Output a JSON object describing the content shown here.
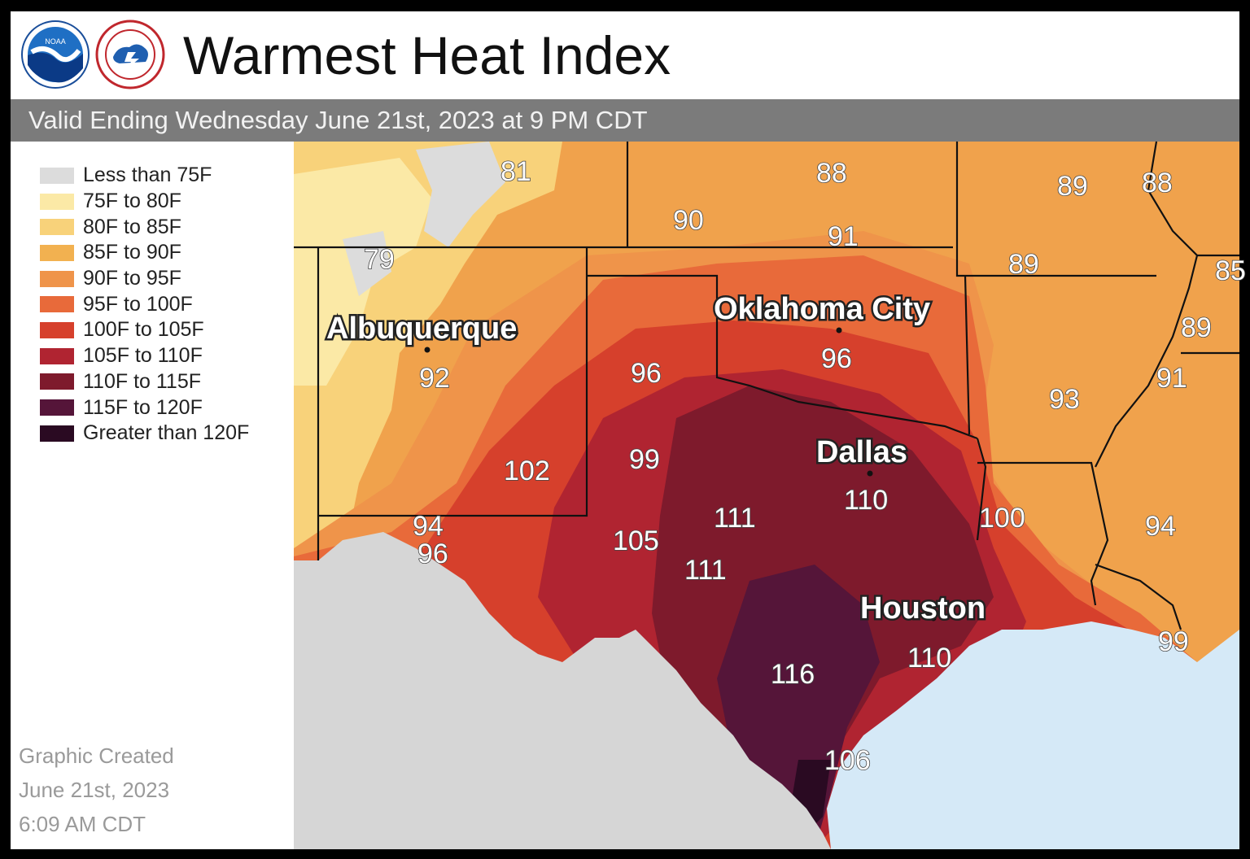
{
  "header": {
    "title": "Warmest Heat Index",
    "subtitle": "Valid Ending Wednesday June 21st, 2023 at 9 PM CDT",
    "logos": [
      "noaa-logo",
      "nws-logo"
    ]
  },
  "legend": {
    "items": [
      {
        "label": "Less than 75F",
        "color": "#dcdcdc"
      },
      {
        "label": "75F to 80F",
        "color": "#fbe9a6"
      },
      {
        "label": "80F to 85F",
        "color": "#f8d27a"
      },
      {
        "label": "85F to 90F",
        "color": "#f2b150"
      },
      {
        "label": "90F to 95F",
        "color": "#ef944a"
      },
      {
        "label": "95F to 100F",
        "color": "#e86a3a"
      },
      {
        "label": "100F to 105F",
        "color": "#d6402c"
      },
      {
        "label": "105F to 110F",
        "color": "#b02431"
      },
      {
        "label": "110F to 115F",
        "color": "#7e1a2c"
      },
      {
        "label": "115F to 120F",
        "color": "#551539"
      },
      {
        "label": "Greater than 120F",
        "color": "#2a0a22"
      }
    ]
  },
  "created": {
    "line1": "Graphic Created",
    "line2": "June 21st, 2023",
    "line3": "6:09 AM CDT"
  },
  "map": {
    "cities": [
      {
        "name": "Albuquerque"
      },
      {
        "name": "Oklahoma City"
      },
      {
        "name": "Dallas"
      },
      {
        "name": "Houston"
      }
    ],
    "values": [
      "81",
      "88",
      "90",
      "91",
      "89",
      "88",
      "79",
      "89",
      "85",
      "96",
      "96",
      "92",
      "89",
      "93",
      "91",
      "99",
      "102",
      "110",
      "111",
      "100",
      "94",
      "94",
      "96",
      "105",
      "111",
      "110",
      "99",
      "116",
      "106"
    ]
  }
}
